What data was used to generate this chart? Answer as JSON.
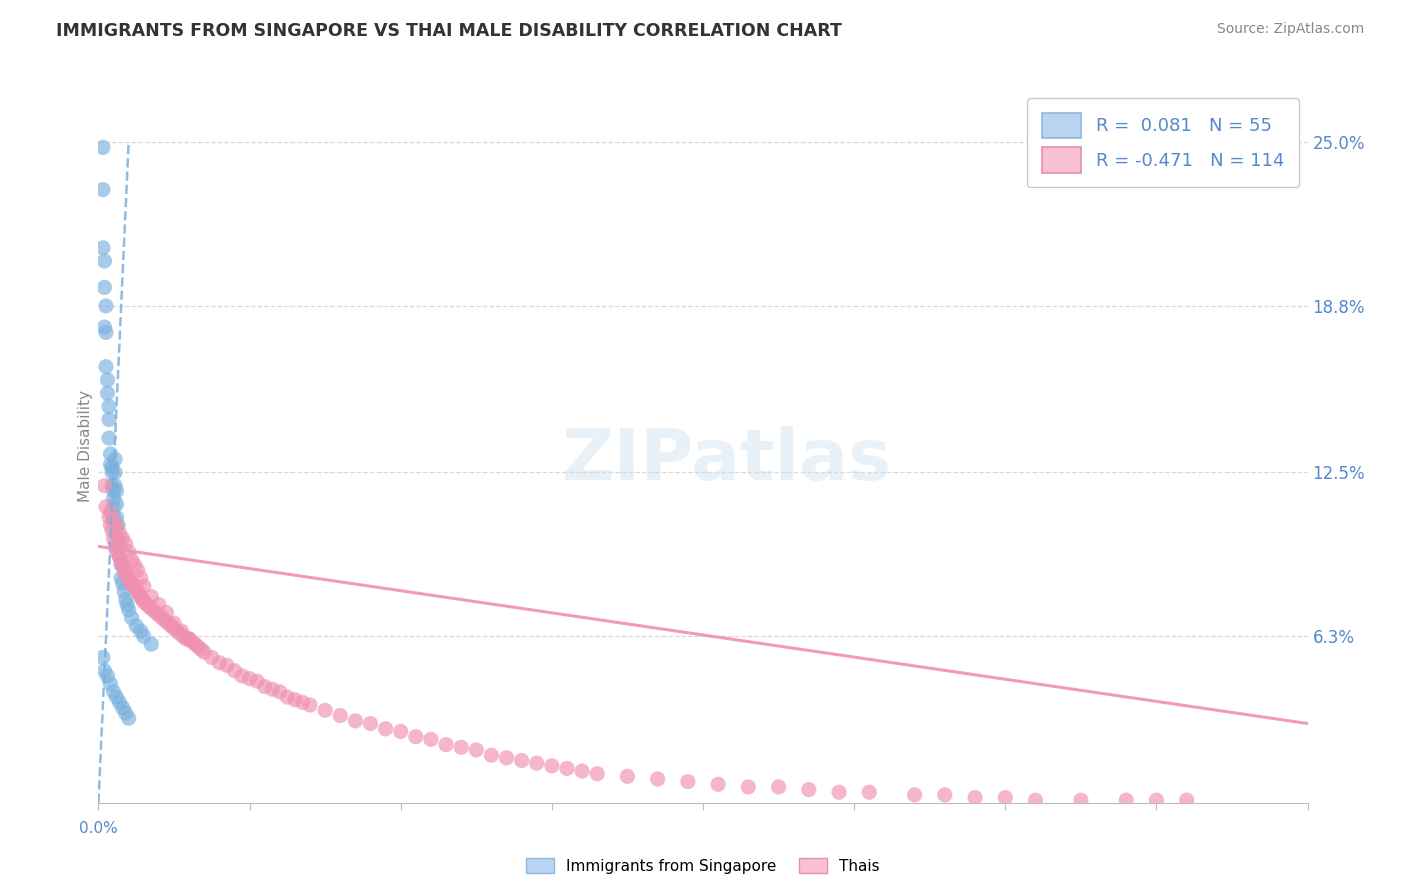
{
  "title": "IMMIGRANTS FROM SINGAPORE VS THAI MALE DISABILITY CORRELATION CHART",
  "source": "Source: ZipAtlas.com",
  "ylabel": "Male Disability",
  "right_yticks": [
    0.063,
    0.125,
    0.188,
    0.25
  ],
  "right_yticklabels": [
    "6.3%",
    "12.5%",
    "18.8%",
    "25.0%"
  ],
  "xmin": 0.0,
  "xmax": 0.8,
  "ymin": 0.0,
  "ymax": 0.27,
  "watermark": "ZIPatlas",
  "blue_scatter_x": [
    0.003,
    0.003,
    0.003,
    0.004,
    0.004,
    0.004,
    0.005,
    0.005,
    0.005,
    0.006,
    0.006,
    0.007,
    0.007,
    0.007,
    0.008,
    0.008,
    0.009,
    0.009,
    0.009,
    0.01,
    0.01,
    0.01,
    0.01,
    0.011,
    0.011,
    0.011,
    0.012,
    0.012,
    0.012,
    0.013,
    0.013,
    0.014,
    0.014,
    0.015,
    0.015,
    0.016,
    0.017,
    0.018,
    0.019,
    0.02,
    0.022,
    0.025,
    0.028,
    0.03,
    0.035,
    0.003,
    0.004,
    0.006,
    0.008,
    0.01,
    0.012,
    0.014,
    0.016,
    0.018,
    0.02
  ],
  "blue_scatter_y": [
    0.248,
    0.232,
    0.21,
    0.205,
    0.195,
    0.18,
    0.188,
    0.178,
    0.165,
    0.16,
    0.155,
    0.15,
    0.145,
    0.138,
    0.132,
    0.128,
    0.127,
    0.125,
    0.12,
    0.118,
    0.115,
    0.112,
    0.108,
    0.13,
    0.125,
    0.12,
    0.118,
    0.113,
    0.108,
    0.105,
    0.1,
    0.097,
    0.093,
    0.09,
    0.085,
    0.083,
    0.08,
    0.077,
    0.075,
    0.073,
    0.07,
    0.067,
    0.065,
    0.063,
    0.06,
    0.055,
    0.05,
    0.048,
    0.045,
    0.042,
    0.04,
    0.038,
    0.036,
    0.034,
    0.032
  ],
  "pink_scatter_x": [
    0.004,
    0.005,
    0.007,
    0.008,
    0.009,
    0.01,
    0.011,
    0.012,
    0.013,
    0.014,
    0.015,
    0.016,
    0.017,
    0.018,
    0.019,
    0.02,
    0.021,
    0.022,
    0.023,
    0.024,
    0.025,
    0.026,
    0.027,
    0.028,
    0.029,
    0.03,
    0.032,
    0.034,
    0.036,
    0.038,
    0.04,
    0.042,
    0.044,
    0.046,
    0.048,
    0.05,
    0.052,
    0.054,
    0.056,
    0.058,
    0.06,
    0.062,
    0.064,
    0.066,
    0.068,
    0.07,
    0.075,
    0.08,
    0.085,
    0.09,
    0.095,
    0.1,
    0.105,
    0.11,
    0.115,
    0.12,
    0.125,
    0.13,
    0.135,
    0.14,
    0.15,
    0.16,
    0.17,
    0.18,
    0.19,
    0.2,
    0.21,
    0.22,
    0.23,
    0.24,
    0.25,
    0.26,
    0.27,
    0.28,
    0.29,
    0.3,
    0.31,
    0.32,
    0.33,
    0.35,
    0.37,
    0.39,
    0.41,
    0.43,
    0.45,
    0.47,
    0.49,
    0.51,
    0.54,
    0.56,
    0.58,
    0.6,
    0.62,
    0.65,
    0.68,
    0.7,
    0.72,
    0.008,
    0.01,
    0.012,
    0.014,
    0.016,
    0.018,
    0.02,
    0.022,
    0.024,
    0.026,
    0.028,
    0.03,
    0.035,
    0.04,
    0.045,
    0.05,
    0.055,
    0.06
  ],
  "pink_scatter_y": [
    0.12,
    0.112,
    0.108,
    0.105,
    0.103,
    0.1,
    0.098,
    0.095,
    0.095,
    0.093,
    0.091,
    0.09,
    0.088,
    0.087,
    0.086,
    0.085,
    0.084,
    0.083,
    0.082,
    0.082,
    0.081,
    0.08,
    0.079,
    0.078,
    0.077,
    0.076,
    0.075,
    0.074,
    0.073,
    0.072,
    0.071,
    0.07,
    0.069,
    0.068,
    0.067,
    0.066,
    0.065,
    0.064,
    0.063,
    0.062,
    0.062,
    0.061,
    0.06,
    0.059,
    0.058,
    0.057,
    0.055,
    0.053,
    0.052,
    0.05,
    0.048,
    0.047,
    0.046,
    0.044,
    0.043,
    0.042,
    0.04,
    0.039,
    0.038,
    0.037,
    0.035,
    0.033,
    0.031,
    0.03,
    0.028,
    0.027,
    0.025,
    0.024,
    0.022,
    0.021,
    0.02,
    0.018,
    0.017,
    0.016,
    0.015,
    0.014,
    0.013,
    0.012,
    0.011,
    0.01,
    0.009,
    0.008,
    0.007,
    0.006,
    0.006,
    0.005,
    0.004,
    0.004,
    0.003,
    0.003,
    0.002,
    0.002,
    0.001,
    0.001,
    0.001,
    0.001,
    0.001,
    0.11,
    0.107,
    0.105,
    0.102,
    0.1,
    0.098,
    0.095,
    0.092,
    0.09,
    0.088,
    0.085,
    0.082,
    0.078,
    0.075,
    0.072,
    0.068,
    0.065,
    0.062
  ],
  "blue_line_x": [
    0.0,
    0.02
  ],
  "blue_line_y": [
    0.0,
    0.25
  ],
  "pink_line_x": [
    0.0,
    0.8
  ],
  "pink_line_y": [
    0.097,
    0.03
  ],
  "scatter_alpha": 0.65,
  "scatter_size": 120,
  "bg_color": "#ffffff",
  "grid_color": "#d8d8d8",
  "blue_color": "#7ab0de",
  "pink_color": "#f090b0",
  "title_color": "#333333",
  "source_color": "#888888",
  "label_color": "#5588cc"
}
